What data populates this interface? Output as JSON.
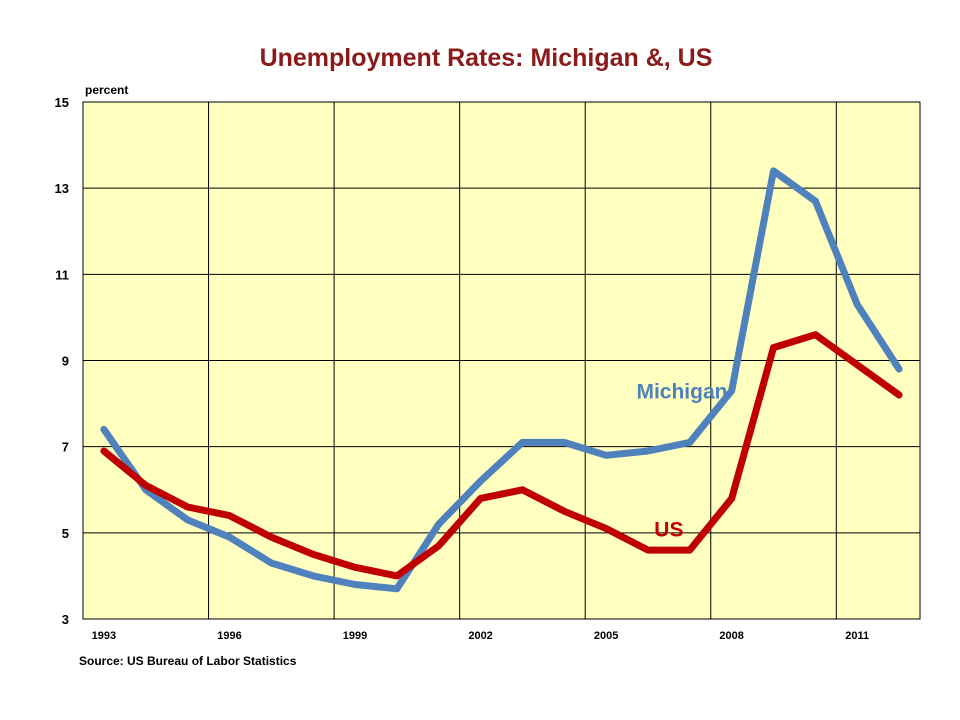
{
  "chart_data": {
    "type": "line",
    "title": "Unemployment Rates: Michigan &, US",
    "ylabel": "percent",
    "xlabel": "",
    "x": [
      1993,
      1994,
      1995,
      1996,
      1997,
      1998,
      1999,
      2000,
      2001,
      2002,
      2003,
      2004,
      2005,
      2006,
      2007,
      2008,
      2009,
      2010,
      2011,
      2012
    ],
    "xticks": [
      "1993",
      "1996",
      "1999",
      "2002",
      "2005",
      "2008",
      "2011"
    ],
    "yticks": [
      "3",
      "5",
      "7",
      "9",
      "11",
      "13",
      "15"
    ],
    "ylim": [
      3,
      15
    ],
    "xlim": [
      1992.5,
      2012.5
    ],
    "grid": true,
    "series": [
      {
        "name": "Michigan",
        "color": "#4f81bd",
        "values": [
          7.4,
          6.0,
          5.3,
          4.9,
          4.3,
          4.0,
          3.8,
          3.7,
          5.2,
          6.2,
          7.1,
          7.1,
          6.8,
          6.9,
          7.1,
          8.3,
          13.4,
          12.7,
          10.3,
          8.8
        ]
      },
      {
        "name": "US",
        "color": "#c00000",
        "values": [
          6.9,
          6.1,
          5.6,
          5.4,
          4.9,
          4.5,
          4.2,
          4.0,
          4.7,
          5.8,
          6.0,
          5.5,
          5.1,
          4.6,
          4.6,
          5.8,
          9.3,
          9.6,
          8.9,
          8.2
        ]
      }
    ],
    "plot_background": "#ffffc0",
    "title_color": "#8b1a1a"
  },
  "source": "Source: US Bureau of Labor Statistics"
}
